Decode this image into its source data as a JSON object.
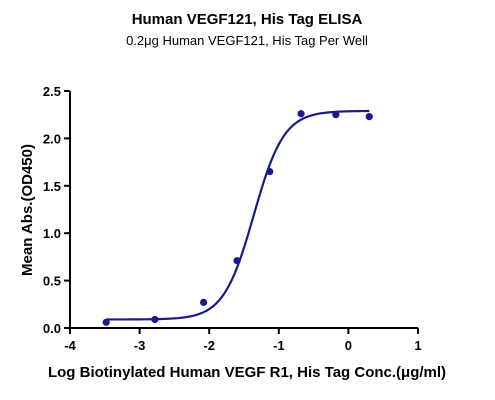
{
  "chart_data": {
    "type": "scatter",
    "title": "Human VEGF121, His Tag ELISA",
    "subtitle": "0.2μg Human VEGF121, His Tag Per Well",
    "xlabel": "Log Biotinylated Human VEGF R1, His Tag Conc.(μg/ml)",
    "ylabel": "Mean Abs.(OD450)",
    "xlim": [
      -4,
      1
    ],
    "ylim": [
      0,
      2.5
    ],
    "xticks": [
      "-4",
      "-3",
      "-2",
      "-1",
      "0",
      "1"
    ],
    "yticks": [
      "0.0",
      "0.5",
      "1.0",
      "1.5",
      "2.0",
      "2.5"
    ],
    "grid": false,
    "series": [
      {
        "x": [
          -3.48,
          -2.78,
          -2.08,
          -1.6,
          -1.13,
          -0.68,
          -0.18,
          0.3
        ],
        "y": [
          0.06,
          0.09,
          0.27,
          0.71,
          1.65,
          2.26,
          2.25,
          2.23
        ],
        "color": "#1a1a8c"
      }
    ],
    "fit_curve": {
      "model": "4PL",
      "bottom": 0.09,
      "top": 2.29,
      "logEC50": -1.36,
      "hill": 2.0,
      "color": "#1a1a8c"
    }
  }
}
